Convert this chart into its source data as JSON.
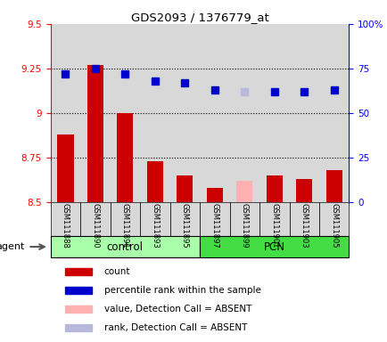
{
  "title": "GDS2093 / 1376779_at",
  "samples": [
    "GSM111888",
    "GSM111890",
    "GSM111891",
    "GSM111893",
    "GSM111895",
    "GSM111897",
    "GSM111899",
    "GSM111901",
    "GSM111903",
    "GSM111905"
  ],
  "groups": [
    "control",
    "control",
    "control",
    "control",
    "control",
    "PCN",
    "PCN",
    "PCN",
    "PCN",
    "PCN"
  ],
  "bar_values": [
    8.88,
    9.27,
    9.0,
    8.73,
    8.65,
    8.58,
    8.62,
    8.65,
    8.63,
    8.68
  ],
  "bar_colors": [
    "#cc0000",
    "#cc0000",
    "#cc0000",
    "#cc0000",
    "#cc0000",
    "#cc0000",
    "#ffb0b0",
    "#cc0000",
    "#cc0000",
    "#cc0000"
  ],
  "rank_values": [
    72,
    75,
    72,
    68,
    67,
    63,
    62,
    62,
    62,
    63
  ],
  "rank_colors": [
    "#0000cc",
    "#0000cc",
    "#0000cc",
    "#0000cc",
    "#0000cc",
    "#0000cc",
    "#b8b8dd",
    "#0000cc",
    "#0000cc",
    "#0000cc"
  ],
  "absent_mask": [
    false,
    false,
    false,
    false,
    false,
    false,
    true,
    false,
    false,
    false
  ],
  "ylim_left": [
    8.5,
    9.5
  ],
  "ylim_right": [
    0,
    100
  ],
  "yticks_left": [
    8.5,
    8.75,
    9.0,
    9.25,
    9.5
  ],
  "ytick_labels_left": [
    "8.5",
    "8.75",
    "9",
    "9.25",
    "9.5"
  ],
  "yticks_right": [
    0,
    25,
    50,
    75,
    100
  ],
  "ytick_labels_right": [
    "0",
    "25",
    "50",
    "75",
    "100%"
  ],
  "hlines": [
    8.75,
    9.0,
    9.25
  ],
  "group_label_control": "control",
  "group_label_pcn": "PCN",
  "agent_label": "agent",
  "legend_items": [
    {
      "label": "count",
      "color": "#cc0000"
    },
    {
      "label": "percentile rank within the sample",
      "color": "#0000cc"
    },
    {
      "label": "value, Detection Call = ABSENT",
      "color": "#ffb0b0"
    },
    {
      "label": "rank, Detection Call = ABSENT",
      "color": "#b8b8dd"
    }
  ],
  "bg_color": "#d8d8d8",
  "control_bg": "#aaffaa",
  "pcn_bg": "#44dd44",
  "bar_width": 0.55
}
